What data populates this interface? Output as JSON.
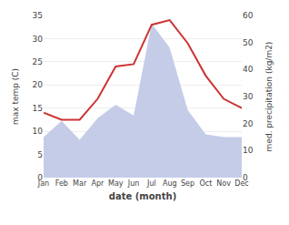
{
  "chart_data": {
    "type": "line",
    "xlabel": "date (month)",
    "ylabel": "max temp (C)",
    "y2label": "med. precipitation (kg/m2)",
    "categories": [
      "Jan",
      "Feb",
      "Mar",
      "Apr",
      "May",
      "Jun",
      "Jul",
      "Aug",
      "Sep",
      "Oct",
      "Nov",
      "Dec"
    ],
    "series": [
      {
        "type": "line",
        "color": "#cc3333",
        "values": [
          14,
          12.5,
          12.5,
          17,
          24,
          24.5,
          33,
          34,
          29,
          22,
          17,
          15
        ]
      },
      {
        "type": "area",
        "color": "#c5cce8",
        "axis": "y2",
        "values": [
          15,
          21,
          14,
          22,
          27,
          23,
          57,
          48,
          25,
          16,
          15,
          15
        ]
      }
    ],
    "ylim": [
      0,
      35
    ],
    "yticks": [
      0,
      5,
      10,
      15,
      20,
      25,
      30,
      35
    ],
    "y2lim": [
      0,
      60
    ],
    "y2ticks": [
      0,
      10,
      20,
      30,
      40,
      50,
      60
    ],
    "grid": true
  }
}
